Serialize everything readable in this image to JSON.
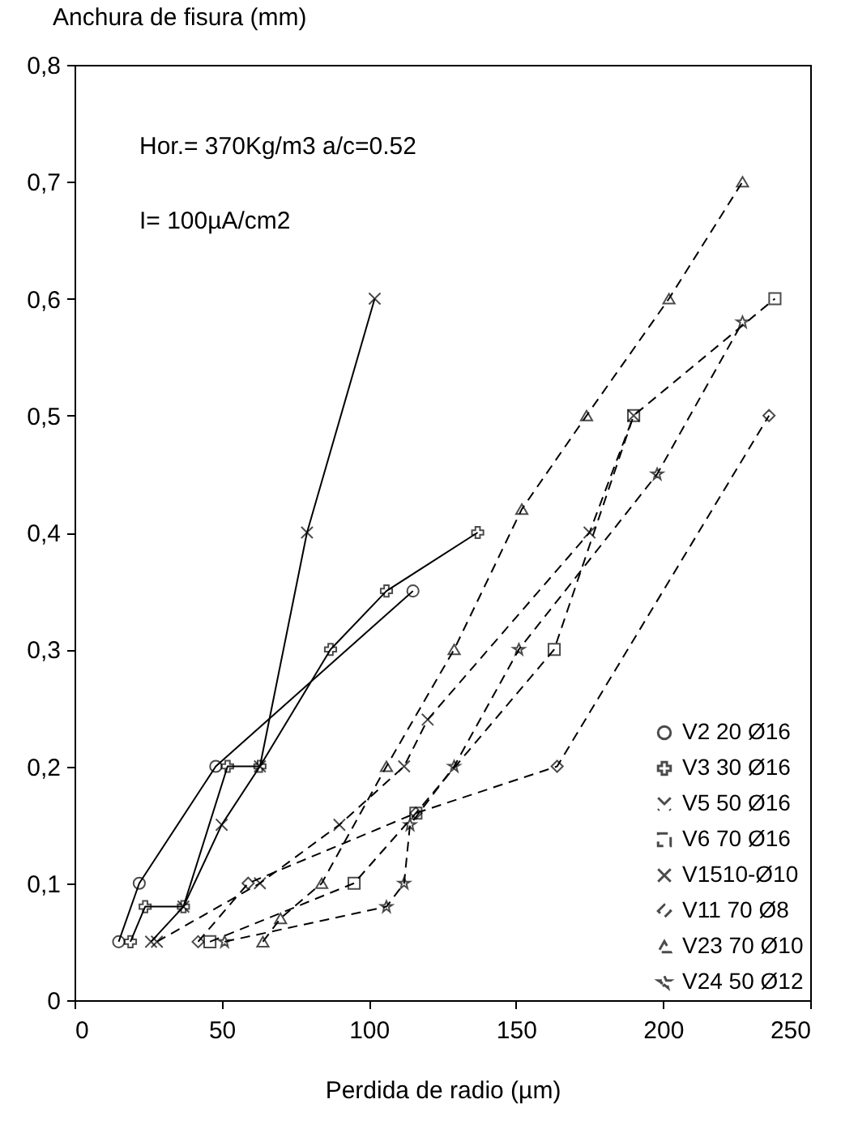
{
  "chart_data": {
    "type": "line",
    "xlabel": "Perdida de radio (µm)",
    "ylabel": "Anchura de fisura (mm)",
    "annotations": [
      "Hor.= 370Kg/m3 a/c=0.52",
      "I= 100µA/cm2"
    ],
    "xlim": [
      0,
      250
    ],
    "xticks": [
      0,
      50,
      100,
      150,
      200,
      250
    ],
    "ylim": [
      0,
      0.8
    ],
    "yticks": [
      {
        "value": 0,
        "label": "0"
      },
      {
        "value": 0.1,
        "label": "0,1"
      },
      {
        "value": 0.2,
        "label": "0,2"
      },
      {
        "value": 0.3,
        "label": "0,3"
      },
      {
        "value": 0.4,
        "label": "0,4"
      },
      {
        "value": 0.5,
        "label": "0,5"
      },
      {
        "value": 0.6,
        "label": "0,6"
      },
      {
        "value": 0.7,
        "label": "0,7"
      },
      {
        "value": 0.8,
        "label": "0,8"
      }
    ],
    "grid": false,
    "legend": "bottom right",
    "series": [
      {
        "name": "V2 20 Ø16",
        "color": "#000000",
        "marker": "circle",
        "line_style": "solid",
        "x": [
          15,
          22,
          48,
          115
        ],
        "values": [
          0.05,
          0.1,
          0.2,
          0.35
        ]
      },
      {
        "name": "V3 30 Ø16",
        "color": "#000000",
        "marker": "cross",
        "line_style": "solid",
        "x": [
          19,
          24,
          37,
          52,
          63,
          87,
          106,
          137
        ],
        "values": [
          0.05,
          0.08,
          0.08,
          0.2,
          0.2,
          0.3,
          0.35,
          0.4
        ]
      },
      {
        "name": "V5 50 Ø16",
        "color": "#000000",
        "marker": "x",
        "line_style": "dashed",
        "x": [
          28,
          63,
          90,
          112,
          120,
          175,
          190
        ],
        "values": [
          0.05,
          0.1,
          0.15,
          0.2,
          0.24,
          0.4,
          0.5
        ]
      },
      {
        "name": "V6 70 Ø16",
        "color": "#000000",
        "marker": "square",
        "line_style": "dashed",
        "x": [
          46,
          95,
          116,
          163,
          190,
          238
        ],
        "values": [
          0.05,
          0.1,
          0.16,
          0.3,
          0.5,
          0.6
        ]
      },
      {
        "name": "V1510-Ø10",
        "color": "#000000",
        "marker": "x",
        "line_style": "solid",
        "x": [
          26,
          37,
          50,
          63,
          79,
          102
        ],
        "values": [
          0.05,
          0.08,
          0.15,
          0.2,
          0.4,
          0.6
        ]
      },
      {
        "name": "V11 70 Ø8",
        "color": "#000000",
        "marker": "diamond",
        "line_style": "dashed",
        "x": [
          42,
          59,
          116,
          164,
          236
        ],
        "values": [
          0.05,
          0.1,
          0.16,
          0.2,
          0.5
        ]
      },
      {
        "name": "V23 70 Ø10",
        "color": "#000000",
        "marker": "triangle",
        "line_style": "dashed",
        "x": [
          64,
          70,
          84,
          106,
          129,
          152,
          174,
          202,
          227
        ],
        "values": [
          0.05,
          0.07,
          0.1,
          0.2,
          0.3,
          0.42,
          0.5,
          0.6,
          0.7
        ]
      },
      {
        "name": "V24 50 Ø12",
        "color": "#000000",
        "marker": "star",
        "line_style": "dashed",
        "x": [
          51,
          106,
          112,
          114,
          129,
          151,
          198,
          227
        ],
        "values": [
          0.05,
          0.08,
          0.1,
          0.15,
          0.2,
          0.3,
          0.45,
          0.58
        ]
      }
    ]
  }
}
